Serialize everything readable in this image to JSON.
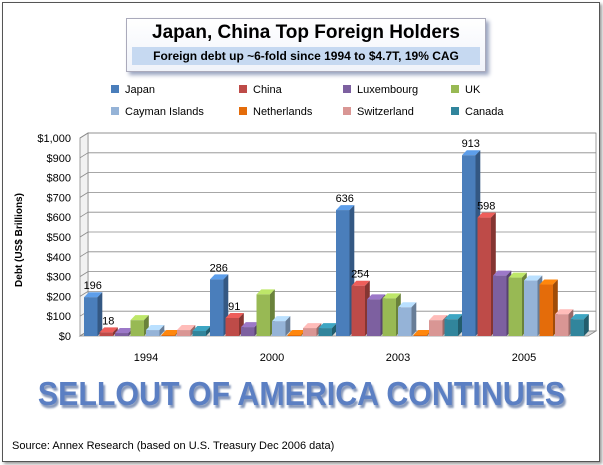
{
  "header": {
    "title": "Japan, China Top Foreign Holders",
    "subtitle": "Foreign debt up ~6-fold since 1994 to $4.7T, 19% CAG"
  },
  "banner": "SELLOUT OF AMERICA CONTINUES",
  "source": "Source: Annex Research (based on U.S. Treasury  Dec 2006 data)",
  "chart_data": {
    "type": "bar",
    "title": "Japan, China Top Foreign Holders",
    "subtitle": "Foreign debt up ~6-fold since 1994 to $4.7T, 19% CAG",
    "xlabel": "",
    "ylabel": "Debt (US$ Brillions)",
    "ylim": [
      0,
      1000
    ],
    "yticks": [
      0,
      100,
      200,
      300,
      400,
      500,
      600,
      700,
      800,
      900,
      1000
    ],
    "ytick_labels": [
      "$0",
      "$100",
      "$200",
      "$300",
      "$400",
      "$500",
      "$600",
      "$700",
      "$800",
      "$900",
      "$1,000"
    ],
    "legend_position": "top",
    "grid": true,
    "categories": [
      "1994",
      "2000",
      "2003",
      "2005"
    ],
    "series": [
      {
        "name": "Japan",
        "color": "#4a7ebb",
        "values": [
          196,
          286,
          636,
          913
        ]
      },
      {
        "name": "China",
        "color": "#be4b48",
        "values": [
          18,
          91,
          254,
          598
        ]
      },
      {
        "name": "Luxembourg",
        "color": "#7d60a0",
        "values": [
          15,
          45,
          185,
          305
        ]
      },
      {
        "name": "UK",
        "color": "#98b954",
        "values": [
          80,
          210,
          190,
          295
        ]
      },
      {
        "name": "Cayman Islands",
        "color": "#95b3d7",
        "values": [
          30,
          75,
          145,
          280
        ]
      },
      {
        "name": "Netherlands",
        "color": "#e46c0a",
        "values": [
          5,
          5,
          5,
          260
        ]
      },
      {
        "name": "Switzerland",
        "color": "#d99694",
        "values": [
          30,
          40,
          80,
          110
        ]
      },
      {
        "name": "Canada",
        "color": "#31859c",
        "values": [
          25,
          40,
          85,
          85
        ]
      }
    ],
    "data_labels": [
      {
        "category": "1994",
        "series": "Japan",
        "text": "196"
      },
      {
        "category": "1994",
        "series": "China",
        "text": "18"
      },
      {
        "category": "2000",
        "series": "Japan",
        "text": "286"
      },
      {
        "category": "2000",
        "series": "China",
        "text": "91"
      },
      {
        "category": "2003",
        "series": "Japan",
        "text": "636"
      },
      {
        "category": "2003",
        "series": "China",
        "text": "254"
      },
      {
        "category": "2005",
        "series": "Japan",
        "text": "913"
      },
      {
        "category": "2005",
        "series": "China",
        "text": "598"
      }
    ]
  }
}
